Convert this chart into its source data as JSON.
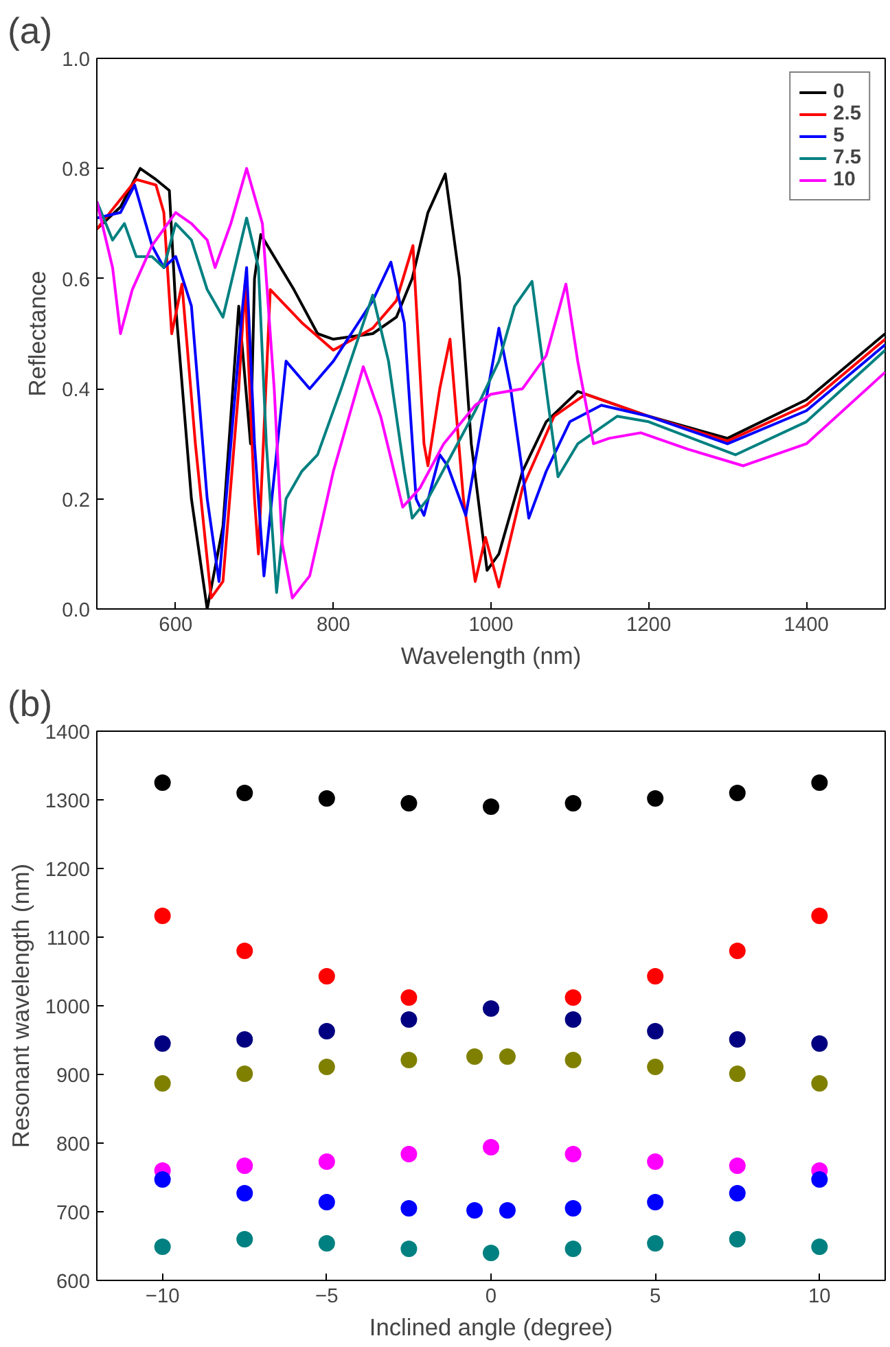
{
  "chart_data": [
    {
      "type": "line",
      "title": "(a)",
      "xlabel": "Wavelength (nm)",
      "ylabel": "Reflectance",
      "xlim": [
        500,
        1500
      ],
      "ylim": [
        0,
        1
      ],
      "xticks": [
        600,
        800,
        1000,
        1200,
        1400
      ],
      "yticks": [
        {
          "value": 0,
          "label": "0.0"
        },
        {
          "value": 0.2,
          "label": "0.2"
        },
        {
          "value": 0.4,
          "label": "0.4"
        },
        {
          "value": 0.6,
          "label": "0.6"
        },
        {
          "value": 0.8,
          "label": "0.8"
        },
        {
          "value": 1,
          "label": "1.0"
        }
      ],
      "grid": false,
      "legend": "top right",
      "marker": "none",
      "line_style": "solid",
      "series": [
        {
          "name": "0",
          "color": "#000000",
          "x": [
            500,
            530,
            555,
            575,
            592,
            600,
            620,
            640,
            660,
            680,
            695,
            700,
            708,
            750,
            780,
            800,
            850,
            880,
            900,
            920,
            942,
            960,
            975,
            995,
            1010,
            1040,
            1070,
            1110,
            1200,
            1300,
            1400,
            1500
          ],
          "values": [
            0.69,
            0.73,
            0.8,
            0.78,
            0.76,
            0.55,
            0.2,
            0.0,
            0.15,
            0.55,
            0.3,
            0.6,
            0.68,
            0.58,
            0.5,
            0.49,
            0.5,
            0.53,
            0.6,
            0.72,
            0.79,
            0.6,
            0.3,
            0.07,
            0.1,
            0.25,
            0.34,
            0.395,
            0.35,
            0.31,
            0.38,
            0.5
          ]
        },
        {
          "name": "2.5",
          "color": "#ff0000",
          "x": [
            500,
            550,
            575,
            585,
            595,
            608,
            625,
            645,
            660,
            680,
            688,
            700,
            705,
            720,
            760,
            800,
            850,
            880,
            901,
            915,
            920,
            935,
            948,
            965,
            980,
            993,
            1010,
            1040,
            1080,
            1120,
            1200,
            1300,
            1400,
            1500
          ],
          "values": [
            0.69,
            0.78,
            0.77,
            0.72,
            0.5,
            0.59,
            0.3,
            0.02,
            0.05,
            0.4,
            0.59,
            0.2,
            0.1,
            0.58,
            0.52,
            0.47,
            0.51,
            0.56,
            0.66,
            0.3,
            0.26,
            0.4,
            0.49,
            0.2,
            0.05,
            0.13,
            0.04,
            0.22,
            0.35,
            0.39,
            0.35,
            0.305,
            0.37,
            0.49
          ]
        },
        {
          "name": "5",
          "color": "#0000ff",
          "x": [
            500,
            530,
            548,
            570,
            585,
            600,
            620,
            640,
            655,
            670,
            685,
            690,
            700,
            712,
            722,
            740,
            770,
            800,
            850,
            873,
            890,
            905,
            915,
            935,
            945,
            968,
            990,
            1010,
            1025,
            1048,
            1070,
            1100,
            1140,
            1200,
            1300,
            1400,
            1500
          ],
          "values": [
            0.71,
            0.72,
            0.77,
            0.66,
            0.62,
            0.64,
            0.55,
            0.2,
            0.05,
            0.3,
            0.55,
            0.62,
            0.3,
            0.06,
            0.2,
            0.45,
            0.4,
            0.45,
            0.56,
            0.63,
            0.52,
            0.2,
            0.17,
            0.28,
            0.26,
            0.17,
            0.35,
            0.51,
            0.4,
            0.165,
            0.25,
            0.34,
            0.37,
            0.35,
            0.3,
            0.36,
            0.48
          ]
        },
        {
          "name": "7.5",
          "color": "#008080",
          "x": [
            500,
            520,
            535,
            550,
            570,
            585,
            600,
            620,
            640,
            660,
            675,
            690,
            705,
            715,
            728,
            740,
            760,
            780,
            810,
            850,
            870,
            890,
            900,
            920,
            950,
            980,
            1010,
            1030,
            1052,
            1070,
            1085,
            1110,
            1160,
            1200,
            1310,
            1400,
            1500
          ],
          "values": [
            0.74,
            0.67,
            0.7,
            0.64,
            0.64,
            0.62,
            0.7,
            0.67,
            0.58,
            0.53,
            0.62,
            0.71,
            0.62,
            0.3,
            0.03,
            0.2,
            0.25,
            0.28,
            0.4,
            0.57,
            0.45,
            0.25,
            0.165,
            0.2,
            0.28,
            0.36,
            0.45,
            0.55,
            0.595,
            0.4,
            0.24,
            0.3,
            0.35,
            0.34,
            0.28,
            0.34,
            0.47
          ]
        },
        {
          "name": "10",
          "color": "#ff00ff",
          "x": [
            500,
            520,
            530,
            545,
            570,
            600,
            620,
            640,
            650,
            670,
            690,
            710,
            725,
            735,
            748,
            770,
            800,
            838,
            860,
            888,
            910,
            940,
            980,
            1000,
            1040,
            1070,
            1095,
            1110,
            1130,
            1150,
            1190,
            1250,
            1320,
            1400,
            1500
          ],
          "values": [
            0.74,
            0.62,
            0.5,
            0.58,
            0.66,
            0.72,
            0.7,
            0.67,
            0.62,
            0.7,
            0.8,
            0.7,
            0.4,
            0.12,
            0.02,
            0.06,
            0.25,
            0.44,
            0.35,
            0.185,
            0.22,
            0.3,
            0.37,
            0.39,
            0.4,
            0.46,
            0.59,
            0.45,
            0.3,
            0.31,
            0.32,
            0.29,
            0.26,
            0.3,
            0.43
          ]
        }
      ]
    },
    {
      "type": "scatter",
      "title": "(b)",
      "xlabel": "Inclined angle (degree)",
      "ylabel": "Resonant wavelength (nm)",
      "xlim": [
        -12,
        12
      ],
      "ylim": [
        600,
        1400
      ],
      "xticks": [
        -10,
        -5,
        0,
        5,
        10
      ],
      "yticks": [
        600,
        700,
        800,
        900,
        1000,
        1100,
        1200,
        1300,
        1400
      ],
      "grid": false,
      "legend": false,
      "marker": "circle",
      "series": [
        {
          "color": "#000000",
          "x": [
            -10,
            -7.5,
            -5,
            -2.5,
            0,
            2.5,
            5,
            7.5,
            10
          ],
          "values": [
            1325,
            1310,
            1302,
            1295,
            1290,
            1295,
            1302,
            1310,
            1325
          ]
        },
        {
          "color": "#ff0000",
          "x": [
            -10,
            -7.5,
            -5,
            -2.5,
            2.5,
            5,
            7.5,
            10
          ],
          "values": [
            1131,
            1080,
            1043,
            1012,
            1012,
            1043,
            1080,
            1131
          ]
        },
        {
          "color": "#000080",
          "x": [
            -10,
            -7.5,
            -5,
            -2.5,
            0,
            2.5,
            5,
            7.5,
            10
          ],
          "values": [
            945,
            951,
            963,
            980,
            996,
            980,
            963,
            951,
            945
          ]
        },
        {
          "color": "#808000",
          "x": [
            -10,
            -7.5,
            -5,
            -2.5,
            -0.5,
            0.5,
            2.5,
            5,
            7.5,
            10
          ],
          "values": [
            887,
            901,
            911,
            921,
            926,
            926,
            921,
            911,
            901,
            887
          ]
        },
        {
          "color": "#ff00ff",
          "x": [
            -10,
            -7.5,
            -5,
            -2.5,
            0,
            2.5,
            5,
            7.5,
            10
          ],
          "values": [
            760,
            767,
            773,
            784,
            794,
            784,
            773,
            767,
            760
          ]
        },
        {
          "color": "#0000ff",
          "x": [
            -10,
            -7.5,
            -5,
            -2.5,
            -0.5,
            0.5,
            2.5,
            5,
            7.5,
            10
          ],
          "values": [
            747,
            727,
            714,
            705,
            702,
            702,
            705,
            714,
            727,
            747
          ]
        },
        {
          "color": "#008080",
          "x": [
            -10,
            -7.5,
            -5,
            -2.5,
            0,
            2.5,
            5,
            7.5,
            10
          ],
          "values": [
            649,
            660,
            654,
            646,
            640,
            646,
            654,
            660,
            649
          ]
        }
      ]
    }
  ]
}
